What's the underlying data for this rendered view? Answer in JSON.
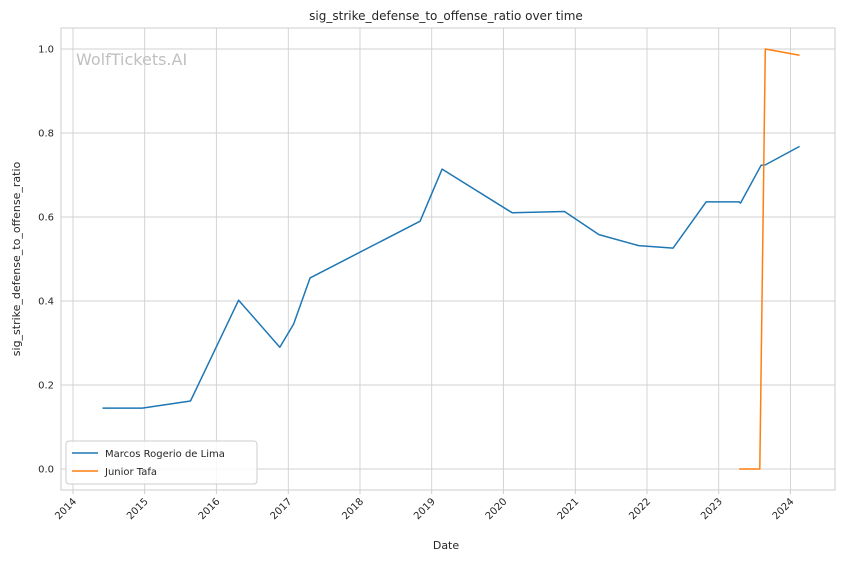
{
  "chart_data": {
    "type": "line",
    "title": "sig_strike_defense_to_offense_ratio over time",
    "xlabel": "Date",
    "ylabel": "sig_strike_defense_to_offense_ratio",
    "watermark": "WolfTickets.AI",
    "xlim": [
      "2013-11-01",
      "2024-08-15"
    ],
    "ylim": [
      -0.05,
      1.05
    ],
    "x_ticks": [
      "2014",
      "2015",
      "2016",
      "2017",
      "2018",
      "2019",
      "2020",
      "2021",
      "2022",
      "2023",
      "2024"
    ],
    "y_ticks": [
      "0.0",
      "0.2",
      "0.4",
      "0.6",
      "0.8",
      "1.0"
    ],
    "grid": true,
    "legend_position": "bottom-left",
    "series": [
      {
        "name": "Marcos Rogerio de Lima",
        "color": "#1f77b4",
        "points": [
          [
            "2014-05-31",
            0.145
          ],
          [
            "2014-12-20",
            0.145
          ],
          [
            "2015-08-22",
            0.162
          ],
          [
            "2016-04-23",
            0.402
          ],
          [
            "2016-11-19",
            0.29
          ],
          [
            "2017-01-28",
            0.345
          ],
          [
            "2017-04-22",
            0.455
          ],
          [
            "2018-11-03",
            0.59
          ],
          [
            "2019-02-23",
            0.714
          ],
          [
            "2020-02-15",
            0.61
          ],
          [
            "2020-11-07",
            0.613
          ],
          [
            "2021-05-01",
            0.558
          ],
          [
            "2021-11-20",
            0.532
          ],
          [
            "2022-05-14",
            0.526
          ],
          [
            "2022-10-29",
            0.636
          ],
          [
            "2023-04-15",
            0.636
          ],
          [
            "2023-04-22",
            0.633
          ],
          [
            "2023-08-05",
            0.723
          ],
          [
            "2023-08-26",
            0.724
          ],
          [
            "2024-02-17",
            0.768
          ]
        ]
      },
      {
        "name": "Junior Tafa",
        "color": "#ff7f0e",
        "points": [
          [
            "2023-04-15",
            0.0
          ],
          [
            "2023-07-29",
            0.0
          ],
          [
            "2023-08-26",
            1.0
          ],
          [
            "2024-02-17",
            0.985
          ]
        ]
      }
    ]
  }
}
